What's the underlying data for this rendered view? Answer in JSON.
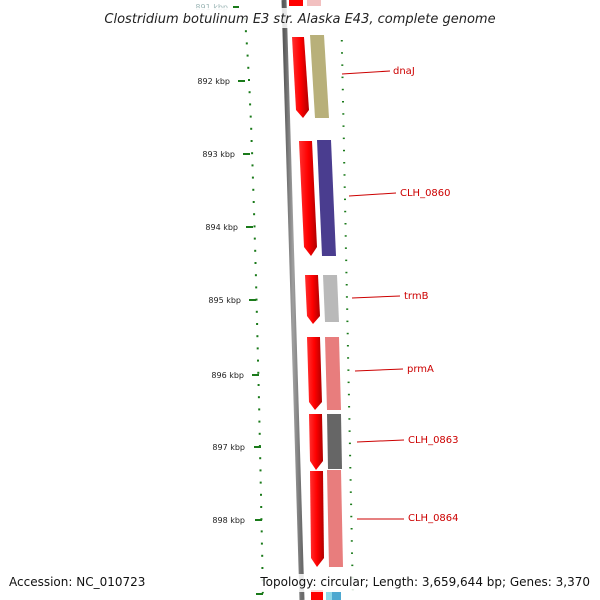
{
  "header": {
    "title": "Clostridium botulinum E3 str. Alaska E43, complete genome"
  },
  "footer": {
    "accession": "Accession: NC_010723",
    "summary": "Topology: circular; Length: 3,659,644 bp; Genes: 3,370"
  },
  "ruler": {
    "labels": [
      "891 kbp",
      "892 kbp",
      "893 kbp",
      "894 kbp",
      "895 kbp",
      "896 kbp",
      "897 kbp",
      "898 kbp"
    ]
  },
  "genes": [
    {
      "name": "dnaJ",
      "color": "#b8b07a"
    },
    {
      "name": "CLH_0860",
      "color": "#4a3d8f"
    },
    {
      "name": "trmB",
      "color": "#b9b9b9"
    },
    {
      "name": "prmA",
      "color": "#e87d7d"
    },
    {
      "name": "CLH_0863",
      "color": "#666666"
    },
    {
      "name": "CLH_0864",
      "color": "#e87d7d"
    }
  ],
  "colors": {
    "strand_arrow": "#ff0000",
    "tick": "#1a7a1a",
    "backbone": "#808080",
    "label_line": "#cc0000"
  }
}
